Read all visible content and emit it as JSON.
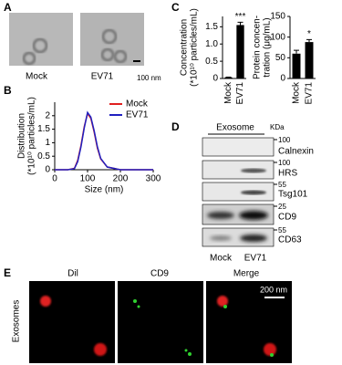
{
  "chart_data": [
    {
      "type": "line",
      "xlabel": "Size (nm)",
      "ylabel": [
        "Distribution",
        "(*10¹⁰ particles/mL)"
      ],
      "x": [
        0,
        40,
        60,
        70,
        80,
        90,
        100,
        110,
        120,
        130,
        140,
        160,
        200,
        300
      ],
      "series": [
        {
          "name": "Mock",
          "color": "#e02020",
          "values": [
            0,
            0,
            0.05,
            0.35,
            0.9,
            1.6,
            2.08,
            1.9,
            1.4,
            0.8,
            0.4,
            0.1,
            0,
            0
          ]
        },
        {
          "name": "EV71",
          "color": "#2020c0",
          "values": [
            0,
            0,
            0.04,
            0.3,
            0.85,
            1.55,
            2.12,
            1.95,
            1.45,
            0.85,
            0.42,
            0.1,
            0,
            0
          ]
        }
      ],
      "xlim": [
        0,
        300
      ],
      "xticks": [
        0,
        100,
        200,
        300
      ],
      "ylim": [
        0,
        2.5
      ],
      "yticks": [
        0,
        0.5,
        1,
        1.5,
        2
      ],
      "legend": "top-right"
    },
    {
      "type": "bar",
      "ylabel": [
        "Concentration",
        "(*10¹⁰ particles/mL)"
      ],
      "categories": [
        "Mock",
        "EV71"
      ],
      "values": [
        0.03,
        1.55
      ],
      "errors": [
        0.01,
        0.08
      ],
      "annotations": [
        null,
        "***"
      ],
      "color": "#000000",
      "ylim": [
        0,
        1.8
      ],
      "yticks": [
        0,
        0.5,
        {
          "value": 1,
          "label": "1.0"
        },
        1.5
      ]
    },
    {
      "type": "bar",
      "ylabel": [
        "Protein concen-",
        "tration (μg/mL)"
      ],
      "categories": [
        "Mock",
        "EV71"
      ],
      "values": [
        60,
        88
      ],
      "errors": [
        8,
        6
      ],
      "annotations": [
        null,
        "*"
      ],
      "color": "#000000",
      "ylim": [
        0,
        150
      ],
      "yticks": [
        0,
        50,
        100,
        150
      ]
    }
  ],
  "panels": {
    "A": {
      "letter": "A",
      "labels": [
        "Mock",
        "EV71"
      ],
      "scale": "100 nm"
    },
    "B": {
      "letter": "B"
    },
    "C": {
      "letter": "C"
    },
    "D": {
      "letter": "D",
      "header": "Exosome",
      "unit": "KDa",
      "rows": [
        {
          "marker": "100",
          "protein": "Calnexin"
        },
        {
          "marker": "100",
          "protein": "HRS"
        },
        {
          "marker": "55",
          "protein": "Tsg101"
        },
        {
          "marker": "25",
          "protein": "CD9"
        },
        {
          "marker": "55",
          "protein": "CD63"
        }
      ],
      "lanes": [
        "Mock",
        "EV71"
      ]
    },
    "E": {
      "letter": "E",
      "columns": [
        "Dil",
        "CD9",
        "Merge"
      ],
      "row": "Exosomes",
      "scale": "200 nm"
    }
  }
}
